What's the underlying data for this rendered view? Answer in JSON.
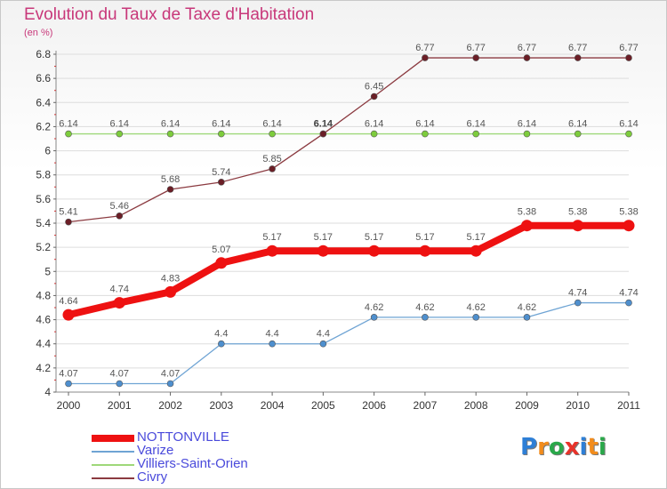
{
  "header": {
    "title": "Evolution du Taux de Taxe d'Habitation",
    "subtitle": "(en %)"
  },
  "logo": {
    "text": "Proxiti",
    "letters": [
      "P",
      "r",
      "o",
      "x",
      "i",
      "t",
      "i"
    ],
    "colors": [
      "#2e7fd6",
      "#f28c1c",
      "#2aa84a",
      "#e8332a",
      "#2e7fd6",
      "#f28c1c",
      "#2aa84a"
    ]
  },
  "chart_data": {
    "type": "line",
    "title": "Evolution du Taux de Taxe d'Habitation",
    "subtitle": "(en %)",
    "xlabel": "",
    "ylabel": "",
    "categories": [
      "2000",
      "2001",
      "2002",
      "2003",
      "2004",
      "2005",
      "2006",
      "2007",
      "2008",
      "2009",
      "2010",
      "2011"
    ],
    "ylim": [
      4,
      6.8
    ],
    "yticks": [
      4,
      4.2,
      4.4,
      4.6,
      4.8,
      5,
      5.2,
      5.4,
      5.6,
      5.8,
      6,
      6.2,
      6.4,
      6.6,
      6.8
    ],
    "ytick_labels": [
      "4",
      "4.2",
      "4.4",
      "4.6",
      "4.8",
      "5",
      "5.2",
      "5.4",
      "5.6",
      "5.8",
      "6",
      "6.2",
      "6.4",
      "6.6",
      "6.8"
    ],
    "grid": "horizontal",
    "legend_position": "bottom-left",
    "series": [
      {
        "name": "NOTTONVILLE",
        "color": "#ee1111",
        "emphasis": true,
        "values": [
          4.64,
          4.74,
          4.83,
          5.07,
          5.17,
          5.17,
          5.17,
          5.17,
          5.17,
          5.38,
          5.38,
          5.38
        ],
        "labels": [
          "4.64",
          "4.74",
          "4.83",
          "5.07",
          "5.17",
          "5.17",
          "5.17",
          "5.17",
          "5.17",
          "5.38",
          "5.38",
          "5.38"
        ]
      },
      {
        "name": "Varize",
        "color": "#6fa4d4",
        "point_color": "#4e8fce",
        "values": [
          4.07,
          4.07,
          4.07,
          4.4,
          4.4,
          4.4,
          4.62,
          4.62,
          4.62,
          4.62,
          4.74,
          4.74
        ],
        "labels": [
          "4.07",
          "4.07",
          "4.07",
          "4.4",
          "4.4",
          "4.4",
          "4.62",
          "4.62",
          "4.62",
          "4.62",
          "4.74",
          "4.74"
        ]
      },
      {
        "name": "Villiers-Saint-Orien",
        "color": "#9ed879",
        "point_color": "#7dcc3c",
        "values": [
          6.14,
          6.14,
          6.14,
          6.14,
          6.14,
          6.14,
          6.14,
          6.14,
          6.14,
          6.14,
          6.14,
          6.14
        ],
        "labels": [
          "6.14",
          "6.14",
          "6.14",
          "6.14",
          "6.14",
          "6.14",
          "6.14",
          "6.14",
          "6.14",
          "6.14",
          "6.14",
          "6.14"
        ]
      },
      {
        "name": "Civry",
        "color": "#8b3a40",
        "point_color": "#6b1e26",
        "values": [
          5.41,
          5.46,
          5.68,
          5.74,
          5.85,
          6.14,
          6.45,
          6.77,
          6.77,
          6.77,
          6.77,
          6.77
        ],
        "labels": [
          "5.41",
          "5.46",
          "5.68",
          "5.74",
          "5.85",
          "6.14",
          "6.45",
          "6.77",
          "6.77",
          "6.77",
          "6.77",
          "6.77"
        ]
      }
    ]
  }
}
